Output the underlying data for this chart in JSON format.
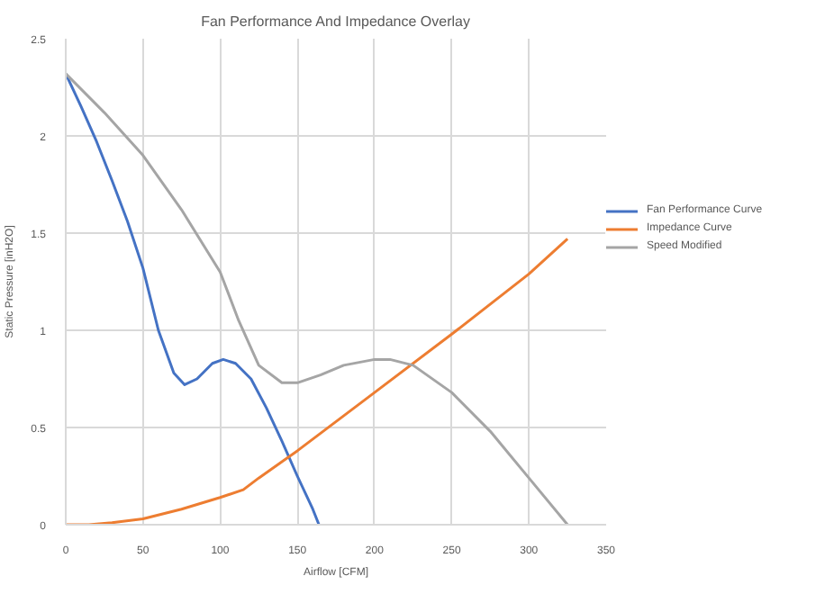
{
  "chart_data": {
    "type": "line",
    "title": "Fan Performance And Impedance Overlay",
    "xlabel": "Airflow [CFM]",
    "ylabel": "Static Pressure [inH2O]",
    "xlim": [
      0,
      350
    ],
    "xticks": [
      0,
      50,
      100,
      150,
      200,
      250,
      300,
      350
    ],
    "ylim": [
      0,
      2.5
    ],
    "yticks": [
      0,
      0.5,
      1,
      1.5,
      2,
      2.5
    ],
    "grid": true,
    "legend": "right",
    "marker": "none",
    "line_style": "solid",
    "series": [
      {
        "name": "Fan Performance Curve",
        "color": "#4472c4",
        "x": [
          0,
          10,
          20,
          30,
          40,
          50,
          60,
          70,
          77,
          85,
          95,
          102,
          110,
          120,
          130,
          140,
          150,
          160,
          164
        ],
        "values": [
          2.32,
          2.15,
          1.97,
          1.77,
          1.56,
          1.32,
          1.0,
          0.78,
          0.72,
          0.75,
          0.83,
          0.85,
          0.83,
          0.75,
          0.6,
          0.43,
          0.25,
          0.08,
          0
        ]
      },
      {
        "name": "Impedance Curve",
        "color": "#ed7d31",
        "x": [
          0,
          15,
          30,
          50,
          75,
          100,
          115,
          125,
          150,
          200,
          250,
          300,
          325
        ],
        "values": [
          0,
          0.0,
          0.01,
          0.03,
          0.08,
          0.14,
          0.18,
          0.24,
          0.38,
          0.68,
          0.98,
          1.29,
          1.47
        ]
      },
      {
        "name": "Speed Modified",
        "color": "#a5a5a5",
        "x": [
          0,
          25,
          50,
          75,
          100,
          112,
          125,
          140,
          150,
          165,
          180,
          200,
          210,
          225,
          250,
          275,
          300,
          325
        ],
        "values": [
          2.32,
          2.12,
          1.9,
          1.62,
          1.3,
          1.05,
          0.82,
          0.73,
          0.73,
          0.77,
          0.82,
          0.85,
          0.85,
          0.82,
          0.68,
          0.48,
          0.24,
          0
        ]
      }
    ]
  }
}
